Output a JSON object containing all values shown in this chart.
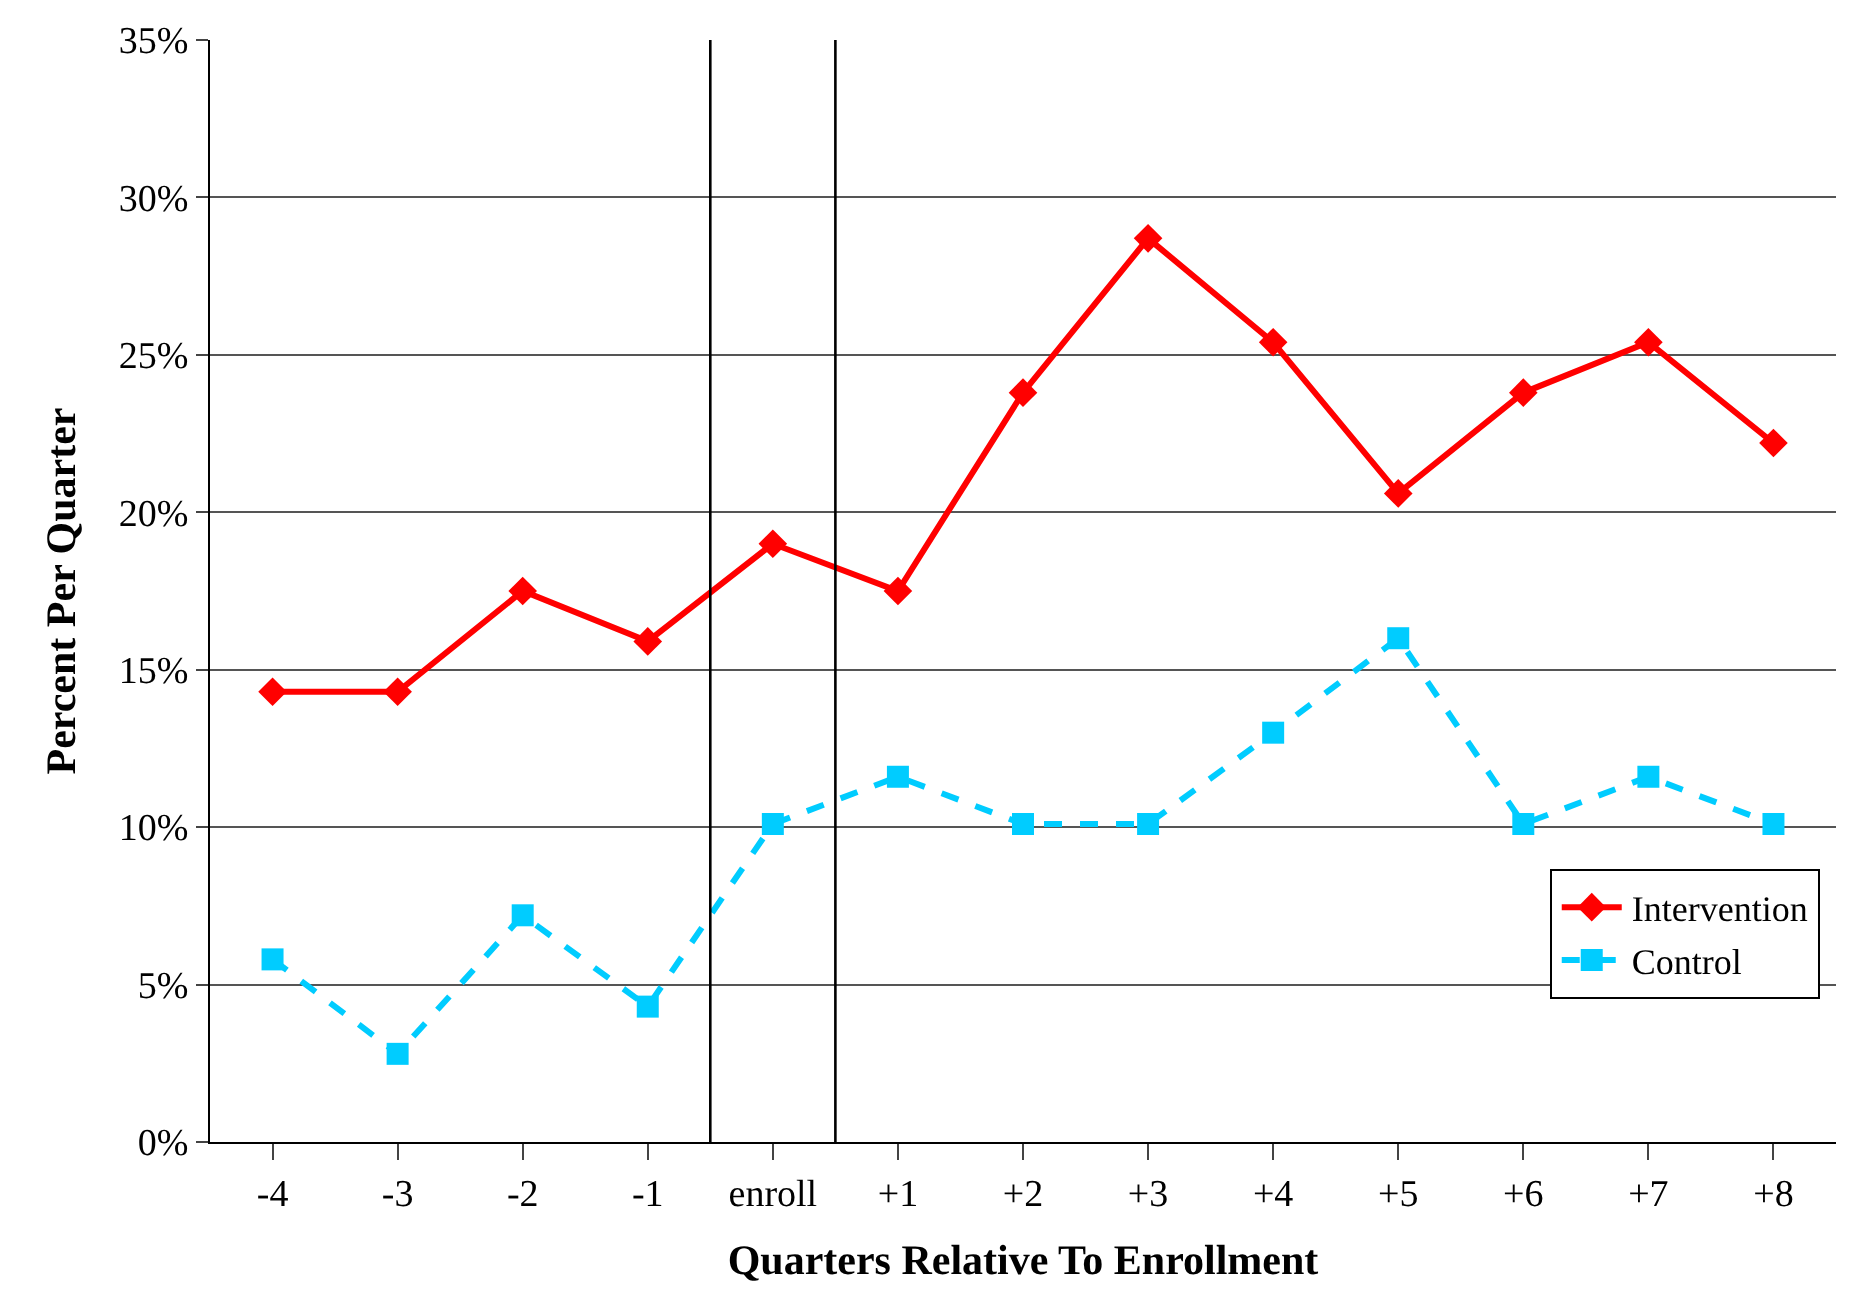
{
  "chart_data": {
    "type": "line",
    "xlabel": "Quarters Relative To Enrollment",
    "ylabel": "Percent Per Quarter",
    "x": [
      -4,
      -3,
      -2,
      -1,
      0,
      1,
      2,
      3,
      4,
      5,
      6,
      7,
      8
    ],
    "xlim": [
      -4.5,
      8.5
    ],
    "xticks": [
      -4,
      -3,
      -2,
      -1,
      {
        "value": 0,
        "label": "enroll"
      },
      {
        "value": 1,
        "label": "+1"
      },
      {
        "value": 2,
        "label": "+2"
      },
      {
        "value": 3,
        "label": "+3"
      },
      {
        "value": 4,
        "label": "+4"
      },
      {
        "value": 5,
        "label": "+5"
      },
      {
        "value": 6,
        "label": "+6"
      },
      {
        "value": 7,
        "label": "+7"
      },
      {
        "value": 8,
        "label": "+8"
      }
    ],
    "ylim": [
      0,
      35
    ],
    "yticks": [
      {
        "value": 0,
        "label": "0%"
      },
      {
        "value": 5,
        "label": "5%"
      },
      {
        "value": 10,
        "label": "10%"
      },
      {
        "value": 15,
        "label": "15%"
      },
      {
        "value": 20,
        "label": "20%"
      },
      {
        "value": 25,
        "label": "25%"
      },
      {
        "value": 30,
        "label": "30%"
      },
      {
        "value": 35,
        "label": "35%"
      }
    ],
    "grid": "y",
    "legend": "bottom right",
    "series": [
      {
        "name": "Intervention",
        "color": "#ff0000",
        "marker": "diamond",
        "line_style": "solid",
        "values": [
          14.3,
          14.3,
          17.5,
          15.9,
          19.0,
          17.5,
          23.8,
          28.7,
          25.4,
          20.6,
          23.8,
          25.4,
          22.2
        ]
      },
      {
        "name": "Control",
        "color": "#00ccff",
        "marker": "square",
        "line_style": "dashed",
        "values": [
          5.8,
          2.8,
          7.2,
          4.3,
          10.1,
          11.6,
          10.1,
          10.1,
          13.0,
          16.0,
          10.1,
          11.6,
          10.1
        ]
      }
    ],
    "ref_lines": [
      {
        "axis": "x",
        "value": -0.5,
        "color": "#000000"
      },
      {
        "axis": "x",
        "value": 0.5,
        "color": "#000000"
      }
    ]
  }
}
